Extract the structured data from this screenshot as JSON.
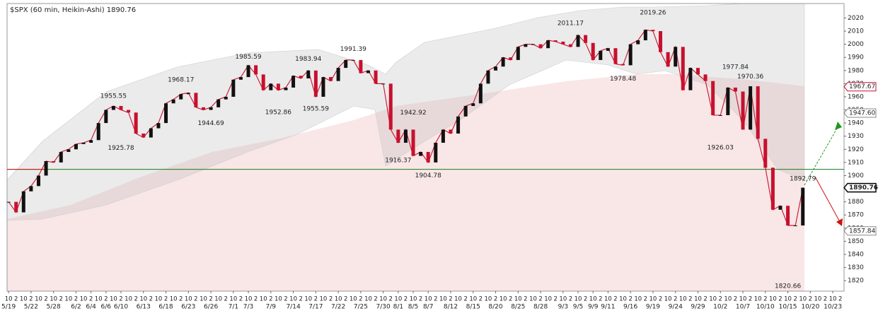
{
  "chart_data": {
    "type": "line",
    "title": "$SPX (60 min, Heikin-Ashi) 1890.76",
    "ylim": [
      1812,
      2031
    ],
    "yticks": [
      1820,
      1830,
      1840,
      1850,
      1860,
      1870,
      1880,
      1890,
      1900,
      1910,
      1920,
      1930,
      1940,
      1950,
      1960,
      1970,
      1980,
      1990,
      2000,
      2010,
      2020
    ],
    "xlim": [
      -0.2,
      111.5
    ],
    "xticks": [
      {
        "value": 0,
        "label": "5/19"
      },
      {
        "value": 3,
        "label": "5/22"
      },
      {
        "value": 6,
        "label": "5/28"
      },
      {
        "value": 9,
        "label": "6/2"
      },
      {
        "value": 11,
        "label": "6/4"
      },
      {
        "value": 13,
        "label": "6/6"
      },
      {
        "value": 15,
        "label": "6/10"
      },
      {
        "value": 18,
        "label": "6/13"
      },
      {
        "value": 21,
        "label": "6/18"
      },
      {
        "value": 24,
        "label": "6/23"
      },
      {
        "value": 27,
        "label": "6/26"
      },
      {
        "value": 30,
        "label": "7/1"
      },
      {
        "value": 32,
        "label": "7/3"
      },
      {
        "value": 35,
        "label": "7/9"
      },
      {
        "value": 38,
        "label": "7/14"
      },
      {
        "value": 41,
        "label": "7/17"
      },
      {
        "value": 44,
        "label": "7/22"
      },
      {
        "value": 47,
        "label": "7/25"
      },
      {
        "value": 50,
        "label": "7/30"
      },
      {
        "value": 52,
        "label": "8/1"
      },
      {
        "value": 54,
        "label": "8/5"
      },
      {
        "value": 56,
        "label": "8/7"
      },
      {
        "value": 59,
        "label": "8/12"
      },
      {
        "value": 62,
        "label": "8/15"
      },
      {
        "value": 65,
        "label": "8/20"
      },
      {
        "value": 68,
        "label": "8/25"
      },
      {
        "value": 71,
        "label": "8/28"
      },
      {
        "value": 74,
        "label": "9/3"
      },
      {
        "value": 76,
        "label": "9/5"
      },
      {
        "value": 78,
        "label": "9/9"
      },
      {
        "value": 80,
        "label": "9/11"
      },
      {
        "value": 83,
        "label": "9/16"
      },
      {
        "value": 86,
        "label": "9/19"
      },
      {
        "value": 89,
        "label": "9/24"
      },
      {
        "value": 92,
        "label": "9/29"
      },
      {
        "value": 95,
        "label": "10/2"
      },
      {
        "value": 98,
        "label": "10/7"
      },
      {
        "value": 101,
        "label": "10/10"
      },
      {
        "value": 104,
        "label": "10/15"
      },
      {
        "value": 107,
        "label": "10/20"
      },
      {
        "value": 110,
        "label": "10/23"
      }
    ],
    "session_labels": [
      "10",
      "2"
    ],
    "series": [
      {
        "name": "$SPX",
        "color": "#c8102e",
        "up_color": "#111111",
        "values": [
          1880,
          1872,
          1888,
          1892,
          1900,
          1911,
          1910,
          1918,
          1920,
          1924,
          1925,
          1927,
          1940,
          1950,
          1953,
          1950,
          1948,
          1932,
          1929,
          1936,
          1940,
          1955,
          1958,
          1962,
          1963,
          1952,
          1950,
          1952,
          1958,
          1960,
          1973,
          1975,
          1984,
          1977,
          1965,
          1970,
          1965,
          1967,
          1976,
          1974,
          1980,
          1960,
          1975,
          1972,
          1982,
          1988,
          1988,
          1978,
          1980,
          1970,
          1970,
          1935,
          1925,
          1935,
          1915,
          1918,
          1910,
          1925,
          1935,
          1932,
          1945,
          1953,
          1955,
          1970,
          1980,
          1983,
          1990,
          1988,
          1998,
          2000,
          2000,
          1997,
          2003,
          2002,
          2000,
          1998,
          2007,
          2001,
          1988,
          1995,
          1997,
          1985,
          1984,
          2000,
          2003,
          2011,
          2010,
          1994,
          1983,
          1998,
          1965,
          1982,
          1977,
          1972,
          1946,
          1946,
          1967,
          1964,
          1935,
          1968,
          1928,
          1906,
          1874,
          1877,
          1862,
          1862,
          1890.76
        ]
      }
    ],
    "annotations": [
      {
        "value": 1955.55,
        "x": 14,
        "position": "above"
      },
      {
        "value": 1925.78,
        "x": 15,
        "position": "below"
      },
      {
        "value": 1968.17,
        "x": 23,
        "position": "above"
      },
      {
        "value": 1944.69,
        "x": 27,
        "position": "below"
      },
      {
        "value": 1985.59,
        "x": 32,
        "position": "above"
      },
      {
        "value": 1952.86,
        "x": 36,
        "position": "below"
      },
      {
        "value": 1983.94,
        "x": 40,
        "position": "above"
      },
      {
        "value": 1955.59,
        "x": 41,
        "position": "below"
      },
      {
        "value": 1991.39,
        "x": 46,
        "position": "above"
      },
      {
        "value": 1942.92,
        "x": 54,
        "position": "above"
      },
      {
        "value": 1916.37,
        "x": 52,
        "position": "below"
      },
      {
        "value": 1904.78,
        "x": 56,
        "position": "below"
      },
      {
        "value": 2011.17,
        "x": 75,
        "position": "above"
      },
      {
        "value": 1978.48,
        "x": 82,
        "position": "below"
      },
      {
        "value": 2019.26,
        "x": 86,
        "position": "above"
      },
      {
        "value": 1977.84,
        "x": 97,
        "position": "above"
      },
      {
        "value": 1970.36,
        "x": 99,
        "position": "above"
      },
      {
        "value": 1926.03,
        "x": 95,
        "position": "below"
      },
      {
        "value": 1892.79,
        "x": 106,
        "position": "above"
      },
      {
        "value": 1820.66,
        "x": 104,
        "position": "below"
      }
    ],
    "hline": 1904.78,
    "hline_color": "#1a7a1a",
    "right_labels": [
      {
        "value": 1967.67,
        "label": "1967.67",
        "color": "#c8102e"
      },
      {
        "value": 1947.6,
        "label": "1947.60",
        "color": "#888888"
      },
      {
        "value": 1857.84,
        "label": "1857.84",
        "color": "#888888"
      }
    ]
  }
}
